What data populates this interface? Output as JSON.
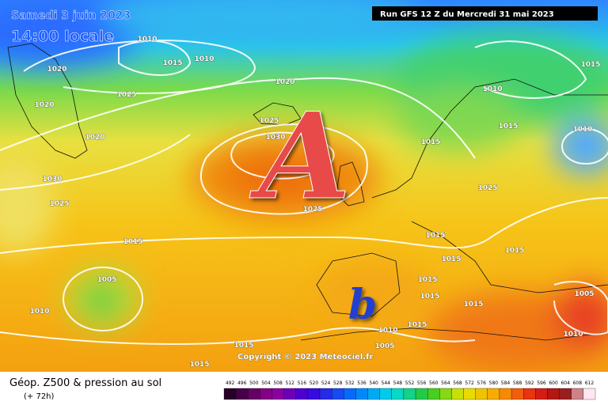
{
  "header": {
    "date": "Samedi 3 juin 2023",
    "time": "14:00 locale",
    "run": "Run GFS 12 Z du Mercredi 31 mai 2023"
  },
  "map": {
    "high_marker": "A",
    "low_marker": "b",
    "copyright": "Copyright © 2023 Meteociel.fr",
    "pressure_labels": [
      1010,
      1015,
      1010,
      1020,
      1020,
      1025,
      1020,
      1020,
      1025,
      1030,
      1030,
      1025,
      1025,
      1015,
      1005,
      1010,
      1015,
      1015,
      1015,
      1025,
      1015,
      1015,
      1015,
      1015,
      1015,
      1015,
      1010,
      1005,
      1005,
      1010,
      1010,
      1015,
      1010,
      1015,
      1015
    ]
  },
  "footer": {
    "title": "Géop. Z500 & pression au sol",
    "lead": "(+ 72h)",
    "scale": [
      492,
      496,
      500,
      504,
      508,
      512,
      516,
      520,
      524,
      528,
      532,
      536,
      540,
      544,
      548,
      552,
      556,
      560,
      564,
      568,
      572,
      576,
      580,
      584,
      588,
      592,
      596,
      600,
      604,
      608,
      612
    ]
  }
}
